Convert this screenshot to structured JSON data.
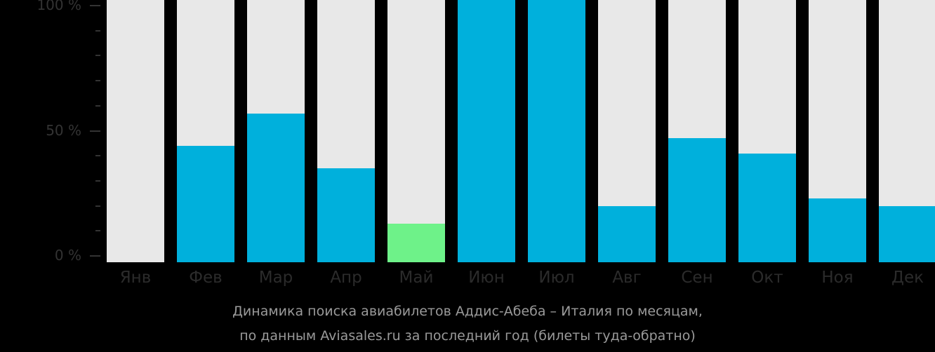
{
  "chart_data": {
    "type": "bar",
    "title": "Динамика поиска авиабилетов Аддис-Абеба – Италия по месяцам,",
    "subtitle": "по данным Aviasales.ru за последний год (билеты туда-обратно)",
    "xlabel": "",
    "ylabel": "",
    "ylim": [
      0,
      100
    ],
    "y_ticks": [
      "0 %",
      "50 %",
      "100 %"
    ],
    "categories": [
      "Янв",
      "Фев",
      "Мар",
      "Апр",
      "Май",
      "Июн",
      "Июл",
      "Авг",
      "Сен",
      "Окт",
      "Ноя",
      "Дек"
    ],
    "values": [
      0,
      44,
      57,
      35,
      13,
      100,
      100,
      20,
      47,
      41,
      23,
      20
    ],
    "highlight_index": 4,
    "colors": {
      "bar": "#00b0dc",
      "highlight": "#6ef289",
      "background_bar": "#e8e8e8",
      "page_background": "#000000"
    },
    "grid": false,
    "legend": null
  },
  "axis": {
    "y_labels": [
      {
        "label": "100 %",
        "value": 100
      },
      {
        "label": "50 %",
        "value": 50
      },
      {
        "label": "0 %",
        "value": 0
      }
    ]
  },
  "caption": {
    "line1": "Динамика поиска авиабилетов Аддис-Абеба – Италия по месяцам,",
    "line2": "по данным Aviasales.ru за последний год (билеты туда-обратно)"
  }
}
